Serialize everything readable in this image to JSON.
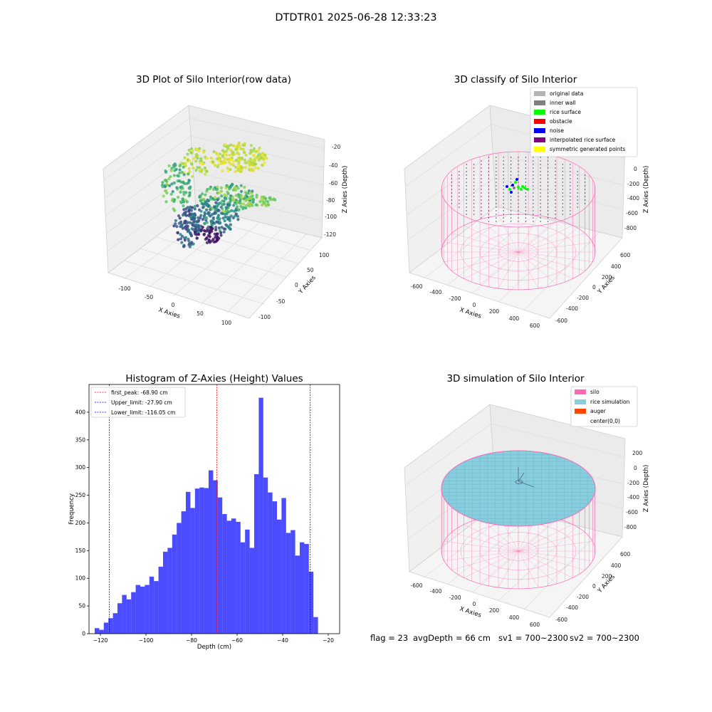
{
  "figure": {
    "suptitle": "DTDTR01 2025-06-28 12:33:23"
  },
  "colors": {
    "silo": "#ff69b4",
    "rice_simulation": "#87cedf",
    "auger": "#ff4500",
    "histogram": "#0000ff",
    "first_peak_line": "#ff0000",
    "limit_lines": "#0000ff",
    "classify": {
      "original data": "#b4b4b4",
      "inner wall": "#808080",
      "rice surface": "#00ff00",
      "obstacle": "#ff0000",
      "noise": "#0000ff",
      "interpolated rice surface": "#800080",
      "symmetric generated points": "#ffff00"
    }
  },
  "raw_plot": {
    "title": "3D Plot of Silo Interior(row data)",
    "xlabel": "X Axies",
    "ylabel": "Y Axies",
    "zlabel": "Z Axies (Depth)",
    "xticks": [
      "-100",
      "-50",
      "0",
      "50",
      "100"
    ],
    "yticks": [
      "100",
      "50",
      "0",
      "-50",
      "-100"
    ],
    "zticks": [
      "-20",
      "-40",
      "-60",
      "-80",
      "-100",
      "-120"
    ],
    "colormap": "viridis"
  },
  "classify_plot": {
    "title": "3D classify of Silo Interior",
    "legend": [
      "original data",
      "inner wall",
      "rice surface",
      "obstacle",
      "noise",
      "interpolated rice surface",
      "symmetric generated points"
    ],
    "xlabel": "X Axies",
    "ylabel": "Y Axies",
    "zlabel": "Z Axies (Depth)",
    "xticks": [
      "-600",
      "-400",
      "-200",
      "0",
      "200",
      "400",
      "600"
    ],
    "yticks": [
      "600",
      "400",
      "200",
      "0",
      "-200",
      "-400",
      "-600"
    ],
    "zticks": [
      "0",
      "-200",
      "-400",
      "-600",
      "-800"
    ]
  },
  "simulation_plot": {
    "title": "3D simulation of Silo Interior",
    "legend": [
      "silo",
      "rice simulation",
      "auger",
      "center(0,0)"
    ],
    "xlabel": "X Axies",
    "ylabel": "Y Axies",
    "zlabel": "Z Axies (Depth)",
    "xticks": [
      "-600",
      "-400",
      "-200",
      "0",
      "200",
      "400",
      "600"
    ],
    "yticks": [
      "600",
      "400",
      "200",
      "0",
      "-200",
      "-400",
      "-600"
    ],
    "zticks": [
      "200",
      "0",
      "-200",
      "-400",
      "-600",
      "-800"
    ]
  },
  "status": {
    "flag": "flag = 23",
    "avg_depth": "avgDepth = 66 cm",
    "sv1": "sv1 = 700~2300",
    "sv2": "sv2 = 700~2300"
  },
  "chart_data": {
    "type": "bar",
    "title": "Histogram of Z-Axies (Height) Values",
    "xlabel": "Depth (cm)",
    "ylabel": "Frequency",
    "xlim": [
      -125,
      -15
    ],
    "ylim": [
      0,
      450
    ],
    "xticks": [
      -120,
      -100,
      -80,
      -60,
      -40,
      -20
    ],
    "yticks": [
      0,
      50,
      100,
      150,
      200,
      250,
      300,
      350,
      400
    ],
    "bin_start": -122.5,
    "bin_width": 2.0,
    "values": [
      10,
      7,
      20,
      28,
      37,
      55,
      70,
      62,
      75,
      88,
      85,
      88,
      103,
      95,
      121,
      148,
      155,
      179,
      200,
      221,
      256,
      227,
      262,
      264,
      263,
      295,
      277,
      246,
      216,
      204,
      208,
      202,
      165,
      188,
      155,
      288,
      426,
      282,
      255,
      239,
      206,
      245,
      182,
      187,
      141,
      165,
      162,
      112,
      30
    ],
    "vlines": [
      {
        "label": "first_peak: -68.90 cm",
        "x": -68.9,
        "color": "#ff0000"
      },
      {
        "label": "Upper_limit: -27.90 cm",
        "x": -27.9,
        "color": "#0000ff"
      },
      {
        "label": "Lower_limit: -116.05 cm",
        "x": -116.05,
        "color": "#0000ff"
      }
    ]
  }
}
